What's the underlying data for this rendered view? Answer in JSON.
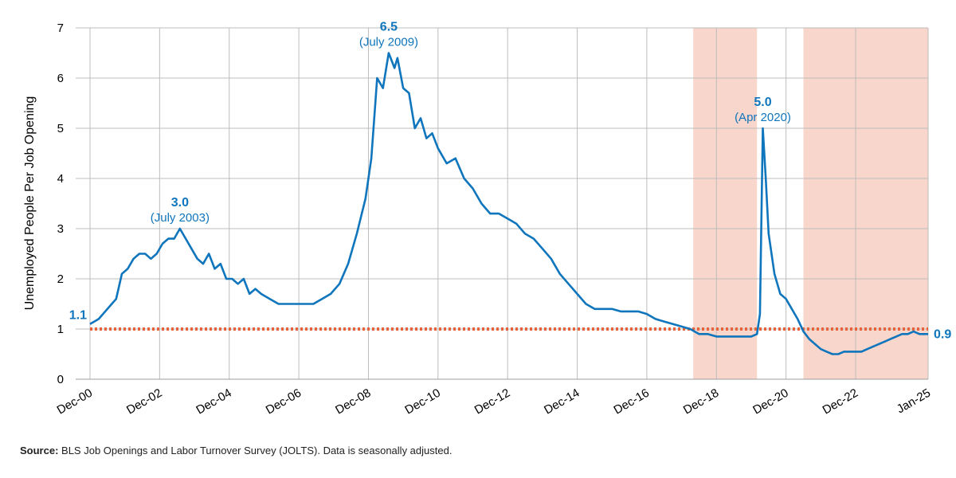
{
  "chart_data": {
    "type": "line",
    "ylabel": "Unemployed People Per Job Opening",
    "ylim": [
      0,
      7
    ],
    "yticks": [
      0,
      1,
      2,
      3,
      4,
      5,
      6,
      7
    ],
    "x_tick_labels": [
      "Dec-00",
      "Dec-02",
      "Dec-04",
      "Dec-06",
      "Dec-08",
      "Dec-10",
      "Dec-12",
      "Dec-14",
      "Dec-16",
      "Dec-18",
      "Dec-20",
      "Dec-22",
      "Jan-25"
    ],
    "x_tick_dates": [
      "2000-12",
      "2002-12",
      "2004-12",
      "2006-12",
      "2008-12",
      "2010-12",
      "2012-12",
      "2014-12",
      "2016-12",
      "2018-12",
      "2020-12",
      "2022-12",
      "2025-01"
    ],
    "grid": true,
    "series": [
      {
        "color": "#0f75bc",
        "points": [
          [
            "2000-12",
            1.1
          ],
          [
            "2001-03",
            1.2
          ],
          [
            "2001-06",
            1.4
          ],
          [
            "2001-09",
            1.6
          ],
          [
            "2001-11",
            2.1
          ],
          [
            "2002-01",
            2.2
          ],
          [
            "2002-03",
            2.4
          ],
          [
            "2002-05",
            2.5
          ],
          [
            "2002-07",
            2.5
          ],
          [
            "2002-09",
            2.4
          ],
          [
            "2002-11",
            2.5
          ],
          [
            "2003-01",
            2.7
          ],
          [
            "2003-03",
            2.8
          ],
          [
            "2003-05",
            2.8
          ],
          [
            "2003-07",
            3.0
          ],
          [
            "2003-09",
            2.8
          ],
          [
            "2003-11",
            2.6
          ],
          [
            "2004-01",
            2.4
          ],
          [
            "2004-03",
            2.3
          ],
          [
            "2004-05",
            2.5
          ],
          [
            "2004-07",
            2.2
          ],
          [
            "2004-09",
            2.3
          ],
          [
            "2004-11",
            2.0
          ],
          [
            "2005-01",
            2.0
          ],
          [
            "2005-03",
            1.9
          ],
          [
            "2005-05",
            2.0
          ],
          [
            "2005-07",
            1.7
          ],
          [
            "2005-09",
            1.8
          ],
          [
            "2005-11",
            1.7
          ],
          [
            "2006-02",
            1.6
          ],
          [
            "2006-05",
            1.5
          ],
          [
            "2006-08",
            1.5
          ],
          [
            "2006-11",
            1.5
          ],
          [
            "2007-02",
            1.5
          ],
          [
            "2007-05",
            1.5
          ],
          [
            "2007-08",
            1.6
          ],
          [
            "2007-11",
            1.7
          ],
          [
            "2008-02",
            1.9
          ],
          [
            "2008-05",
            2.3
          ],
          [
            "2008-08",
            2.9
          ],
          [
            "2008-11",
            3.6
          ],
          [
            "2009-01",
            4.4
          ],
          [
            "2009-03",
            6.0
          ],
          [
            "2009-05",
            5.8
          ],
          [
            "2009-07",
            6.5
          ],
          [
            "2009-09",
            6.2
          ],
          [
            "2009-10",
            6.4
          ],
          [
            "2009-12",
            5.8
          ],
          [
            "2010-02",
            5.7
          ],
          [
            "2010-04",
            5.0
          ],
          [
            "2010-06",
            5.2
          ],
          [
            "2010-08",
            4.8
          ],
          [
            "2010-10",
            4.9
          ],
          [
            "2010-12",
            4.6
          ],
          [
            "2011-03",
            4.3
          ],
          [
            "2011-06",
            4.4
          ],
          [
            "2011-09",
            4.0
          ],
          [
            "2011-12",
            3.8
          ],
          [
            "2012-03",
            3.5
          ],
          [
            "2012-06",
            3.3
          ],
          [
            "2012-09",
            3.3
          ],
          [
            "2012-12",
            3.2
          ],
          [
            "2013-03",
            3.1
          ],
          [
            "2013-06",
            2.9
          ],
          [
            "2013-09",
            2.8
          ],
          [
            "2013-12",
            2.6
          ],
          [
            "2014-03",
            2.4
          ],
          [
            "2014-06",
            2.1
          ],
          [
            "2014-09",
            1.9
          ],
          [
            "2014-12",
            1.7
          ],
          [
            "2015-03",
            1.5
          ],
          [
            "2015-06",
            1.4
          ],
          [
            "2015-09",
            1.4
          ],
          [
            "2015-12",
            1.4
          ],
          [
            "2016-03",
            1.35
          ],
          [
            "2016-06",
            1.35
          ],
          [
            "2016-09",
            1.35
          ],
          [
            "2016-12",
            1.3
          ],
          [
            "2017-03",
            1.2
          ],
          [
            "2017-06",
            1.15
          ],
          [
            "2017-09",
            1.1
          ],
          [
            "2017-12",
            1.05
          ],
          [
            "2018-03",
            1.0
          ],
          [
            "2018-06",
            0.9
          ],
          [
            "2018-09",
            0.9
          ],
          [
            "2018-12",
            0.85
          ],
          [
            "2019-03",
            0.85
          ],
          [
            "2019-06",
            0.85
          ],
          [
            "2019-09",
            0.85
          ],
          [
            "2019-12",
            0.85
          ],
          [
            "2020-02",
            0.9
          ],
          [
            "2020-03",
            1.3
          ],
          [
            "2020-04",
            5.0
          ],
          [
            "2020-05",
            4.0
          ],
          [
            "2020-06",
            2.9
          ],
          [
            "2020-08",
            2.1
          ],
          [
            "2020-10",
            1.7
          ],
          [
            "2020-12",
            1.6
          ],
          [
            "2021-02",
            1.4
          ],
          [
            "2021-04",
            1.2
          ],
          [
            "2021-06",
            0.95
          ],
          [
            "2021-08",
            0.8
          ],
          [
            "2021-10",
            0.7
          ],
          [
            "2021-12",
            0.6
          ],
          [
            "2022-02",
            0.55
          ],
          [
            "2022-04",
            0.5
          ],
          [
            "2022-06",
            0.5
          ],
          [
            "2022-08",
            0.55
          ],
          [
            "2022-10",
            0.55
          ],
          [
            "2022-12",
            0.55
          ],
          [
            "2023-02",
            0.55
          ],
          [
            "2023-04",
            0.6
          ],
          [
            "2023-06",
            0.65
          ],
          [
            "2023-08",
            0.7
          ],
          [
            "2023-10",
            0.75
          ],
          [
            "2023-12",
            0.8
          ],
          [
            "2024-02",
            0.85
          ],
          [
            "2024-04",
            0.9
          ],
          [
            "2024-06",
            0.9
          ],
          [
            "2024-08",
            0.95
          ],
          [
            "2024-10",
            0.9
          ],
          [
            "2025-01",
            0.9
          ]
        ]
      }
    ],
    "reference_line": {
      "y": 1,
      "color": "#e8633a",
      "style": "dotted"
    },
    "shaded_periods": [
      {
        "start": "2018-04",
        "end": "2020-02",
        "color": "#f9d6cc"
      },
      {
        "start": "2021-06",
        "end": "2025-01",
        "color": "#f9d6cc"
      }
    ],
    "annotations": [
      {
        "date": "2003-07",
        "y": 3.0,
        "value": "3.0",
        "label": "(July 2003)"
      },
      {
        "date": "2009-07",
        "y": 6.5,
        "value": "6.5",
        "label": "(July 2009)"
      },
      {
        "date": "2020-04",
        "y": 5.0,
        "value": "5.0",
        "label": "(Apr 2020)"
      }
    ],
    "start_label": {
      "date": "2000-12",
      "y": 1.1,
      "text": "1.1"
    },
    "end_label": {
      "date": "2025-01",
      "y": 0.9,
      "text": "0.9"
    }
  },
  "source": {
    "label": "Source:",
    "text": "BLS Job Openings and Labor Turnover Survey (JOLTS). Data is seasonally adjusted."
  }
}
